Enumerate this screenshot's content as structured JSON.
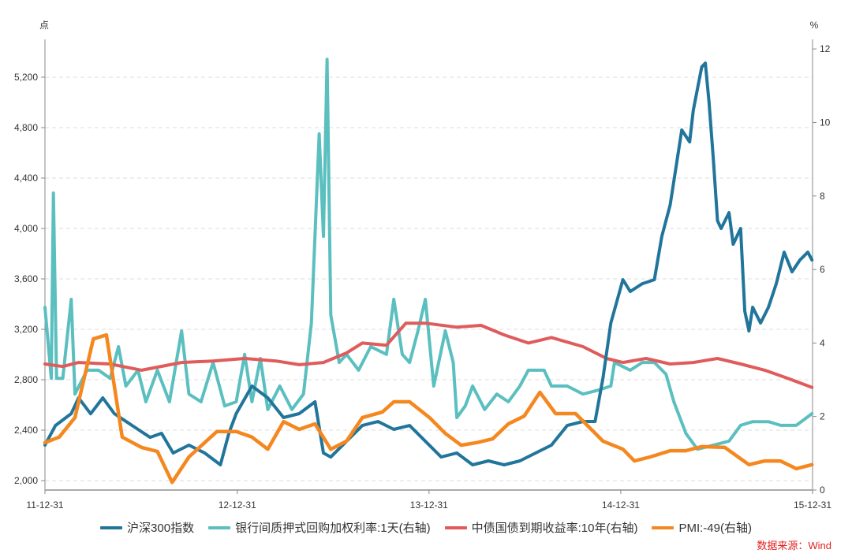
{
  "chart_data": {
    "type": "line",
    "title": "",
    "x_unit": "days since 2011-12-31",
    "x_ticks": [
      {
        "value": 0,
        "label": "11-12-31"
      },
      {
        "value": 366,
        "label": "12-12-31"
      },
      {
        "value": 731,
        "label": "13-12-31"
      },
      {
        "value": 1096,
        "label": "14-12-31"
      },
      {
        "value": 1461,
        "label": "15-12-31"
      }
    ],
    "xlim": [
      0,
      1461
    ],
    "left_axis": {
      "label": "点",
      "ylim": [
        1925,
        5500
      ],
      "ticks": [
        2000,
        2400,
        2800,
        3200,
        3600,
        4000,
        4400,
        4800,
        5200
      ],
      "tick_labels": [
        "2,000",
        "2,400",
        "2,800",
        "3,200",
        "3,600",
        "4,000",
        "4,400",
        "4,800",
        "5,200"
      ]
    },
    "right_axis": {
      "label": "%",
      "ylim": [
        0,
        12.26
      ],
      "ticks": [
        0,
        2,
        4,
        6,
        8,
        10,
        12
      ],
      "tick_labels": [
        "0",
        "2",
        "4",
        "6",
        "8",
        "10",
        "12"
      ]
    },
    "grid": true,
    "legend_position": "bottom",
    "series": [
      {
        "name": "沪深300指数",
        "axis": "left",
        "color": "#21759b",
        "points": [
          [
            0,
            2281
          ],
          [
            20,
            2437
          ],
          [
            50,
            2531
          ],
          [
            64,
            2656
          ],
          [
            87,
            2530
          ],
          [
            110,
            2656
          ],
          [
            132,
            2531
          ],
          [
            154,
            2470
          ],
          [
            177,
            2406
          ],
          [
            200,
            2343
          ],
          [
            222,
            2375
          ],
          [
            244,
            2219
          ],
          [
            274,
            2281
          ],
          [
            304,
            2219
          ],
          [
            334,
            2125
          ],
          [
            350,
            2375
          ],
          [
            364,
            2531
          ],
          [
            394,
            2750
          ],
          [
            424,
            2656
          ],
          [
            454,
            2500
          ],
          [
            484,
            2531
          ],
          [
            514,
            2625
          ],
          [
            530,
            2219
          ],
          [
            544,
            2187
          ],
          [
            574,
            2312
          ],
          [
            604,
            2437
          ],
          [
            634,
            2469
          ],
          [
            664,
            2406
          ],
          [
            694,
            2437
          ],
          [
            724,
            2312
          ],
          [
            754,
            2187
          ],
          [
            784,
            2219
          ],
          [
            814,
            2125
          ],
          [
            844,
            2156
          ],
          [
            874,
            2125
          ],
          [
            904,
            2156
          ],
          [
            934,
            2219
          ],
          [
            964,
            2281
          ],
          [
            994,
            2437
          ],
          [
            1024,
            2469
          ],
          [
            1047,
            2469
          ],
          [
            1062,
            2812
          ],
          [
            1077,
            3250
          ],
          [
            1100,
            3594
          ],
          [
            1114,
            3500
          ],
          [
            1137,
            3562
          ],
          [
            1160,
            3594
          ],
          [
            1174,
            3937
          ],
          [
            1190,
            4187
          ],
          [
            1204,
            4562
          ],
          [
            1212,
            4781
          ],
          [
            1227,
            4687
          ],
          [
            1234,
            4937
          ],
          [
            1250,
            5281
          ],
          [
            1257,
            5312
          ],
          [
            1264,
            5000
          ],
          [
            1272,
            4562
          ],
          [
            1280,
            4062
          ],
          [
            1287,
            4000
          ],
          [
            1302,
            4125
          ],
          [
            1310,
            3875
          ],
          [
            1324,
            4000
          ],
          [
            1332,
            3344
          ],
          [
            1340,
            3187
          ],
          [
            1347,
            3375
          ],
          [
            1362,
            3250
          ],
          [
            1377,
            3375
          ],
          [
            1392,
            3562
          ],
          [
            1407,
            3812
          ],
          [
            1422,
            3656
          ],
          [
            1437,
            3750
          ],
          [
            1452,
            3812
          ],
          [
            1460,
            3750
          ]
        ]
      },
      {
        "name": "银行间质押式回购加权利率:1天(右轴)",
        "axis": "right",
        "color": "#5bbfc0",
        "points": [
          [
            0,
            4.97
          ],
          [
            8,
            3.69
          ],
          [
            12,
            3.04
          ],
          [
            16,
            8.08
          ],
          [
            22,
            3.04
          ],
          [
            34,
            3.04
          ],
          [
            50,
            5.19
          ],
          [
            57,
            2.61
          ],
          [
            80,
            3.26
          ],
          [
            102,
            3.26
          ],
          [
            124,
            3.04
          ],
          [
            140,
            3.9
          ],
          [
            154,
            2.83
          ],
          [
            177,
            3.26
          ],
          [
            192,
            2.4
          ],
          [
            214,
            3.26
          ],
          [
            237,
            2.4
          ],
          [
            260,
            4.33
          ],
          [
            274,
            2.61
          ],
          [
            297,
            2.4
          ],
          [
            320,
            3.47
          ],
          [
            342,
            2.29
          ],
          [
            364,
            2.4
          ],
          [
            380,
            3.69
          ],
          [
            394,
            2.4
          ],
          [
            410,
            3.58
          ],
          [
            424,
            2.19
          ],
          [
            447,
            2.83
          ],
          [
            470,
            2.19
          ],
          [
            492,
            2.61
          ],
          [
            507,
            4.54
          ],
          [
            522,
            9.69
          ],
          [
            530,
            6.9
          ],
          [
            537,
            11.72
          ],
          [
            544,
            4.76
          ],
          [
            560,
            3.47
          ],
          [
            574,
            3.69
          ],
          [
            597,
            3.26
          ],
          [
            620,
            3.9
          ],
          [
            650,
            3.69
          ],
          [
            664,
            5.19
          ],
          [
            680,
            3.69
          ],
          [
            694,
            3.47
          ],
          [
            710,
            4.33
          ],
          [
            724,
            5.19
          ],
          [
            740,
            2.83
          ],
          [
            762,
            4.33
          ],
          [
            777,
            3.47
          ],
          [
            784,
            1.97
          ],
          [
            800,
            2.29
          ],
          [
            814,
            2.83
          ],
          [
            837,
            2.19
          ],
          [
            860,
            2.61
          ],
          [
            882,
            2.4
          ],
          [
            904,
            2.83
          ],
          [
            920,
            3.26
          ],
          [
            950,
            3.26
          ],
          [
            964,
            2.83
          ],
          [
            994,
            2.83
          ],
          [
            1024,
            2.61
          ],
          [
            1054,
            2.72
          ],
          [
            1077,
            2.83
          ],
          [
            1084,
            3.47
          ],
          [
            1114,
            3.26
          ],
          [
            1137,
            3.47
          ],
          [
            1160,
            3.47
          ],
          [
            1182,
            3.15
          ],
          [
            1197,
            2.4
          ],
          [
            1220,
            1.54
          ],
          [
            1242,
            1.11
          ],
          [
            1272,
            1.22
          ],
          [
            1302,
            1.33
          ],
          [
            1324,
            1.76
          ],
          [
            1347,
            1.86
          ],
          [
            1377,
            1.86
          ],
          [
            1400,
            1.76
          ],
          [
            1430,
            1.76
          ],
          [
            1460,
            2.08
          ]
        ]
      },
      {
        "name": "中债国债到期收益率:10年(右轴)",
        "axis": "right",
        "color": "#e05b5b",
        "points": [
          [
            0,
            3.43
          ],
          [
            34,
            3.36
          ],
          [
            64,
            3.47
          ],
          [
            124,
            3.43
          ],
          [
            184,
            3.26
          ],
          [
            260,
            3.47
          ],
          [
            320,
            3.51
          ],
          [
            380,
            3.58
          ],
          [
            440,
            3.51
          ],
          [
            484,
            3.41
          ],
          [
            530,
            3.47
          ],
          [
            574,
            3.73
          ],
          [
            604,
            4.0
          ],
          [
            650,
            3.94
          ],
          [
            687,
            4.54
          ],
          [
            724,
            4.54
          ],
          [
            784,
            4.43
          ],
          [
            830,
            4.48
          ],
          [
            874,
            4.22
          ],
          [
            920,
            4.0
          ],
          [
            964,
            4.15
          ],
          [
            1024,
            3.9
          ],
          [
            1069,
            3.58
          ],
          [
            1100,
            3.47
          ],
          [
            1144,
            3.58
          ],
          [
            1190,
            3.43
          ],
          [
            1234,
            3.47
          ],
          [
            1280,
            3.58
          ],
          [
            1324,
            3.43
          ],
          [
            1370,
            3.26
          ],
          [
            1414,
            3.04
          ],
          [
            1460,
            2.79
          ]
        ]
      },
      {
        "name": "PMI:-49(右轴)",
        "axis": "right",
        "color": "#f5871f",
        "points": [
          [
            0,
            1.29
          ],
          [
            27,
            1.44
          ],
          [
            57,
            1.97
          ],
          [
            92,
            4.11
          ],
          [
            117,
            4.22
          ],
          [
            147,
            1.44
          ],
          [
            184,
            1.16
          ],
          [
            214,
            1.05
          ],
          [
            242,
            0.21
          ],
          [
            274,
            0.9
          ],
          [
            327,
            1.59
          ],
          [
            364,
            1.59
          ],
          [
            394,
            1.44
          ],
          [
            424,
            1.11
          ],
          [
            454,
            1.86
          ],
          [
            484,
            1.65
          ],
          [
            514,
            1.8
          ],
          [
            544,
            1.11
          ],
          [
            574,
            1.33
          ],
          [
            604,
            1.97
          ],
          [
            642,
            2.12
          ],
          [
            664,
            2.4
          ],
          [
            694,
            2.4
          ],
          [
            732,
            1.97
          ],
          [
            762,
            1.54
          ],
          [
            792,
            1.22
          ],
          [
            822,
            1.29
          ],
          [
            852,
            1.39
          ],
          [
            882,
            1.8
          ],
          [
            912,
            2.01
          ],
          [
            942,
            2.66
          ],
          [
            972,
            2.08
          ],
          [
            1010,
            2.08
          ],
          [
            1062,
            1.33
          ],
          [
            1100,
            1.11
          ],
          [
            1122,
            0.79
          ],
          [
            1152,
            0.9
          ],
          [
            1190,
            1.07
          ],
          [
            1220,
            1.07
          ],
          [
            1250,
            1.18
          ],
          [
            1294,
            1.16
          ],
          [
            1340,
            0.69
          ],
          [
            1370,
            0.79
          ],
          [
            1400,
            0.79
          ],
          [
            1430,
            0.58
          ],
          [
            1460,
            0.69
          ]
        ]
      }
    ],
    "source": "数据来源：Wind"
  }
}
